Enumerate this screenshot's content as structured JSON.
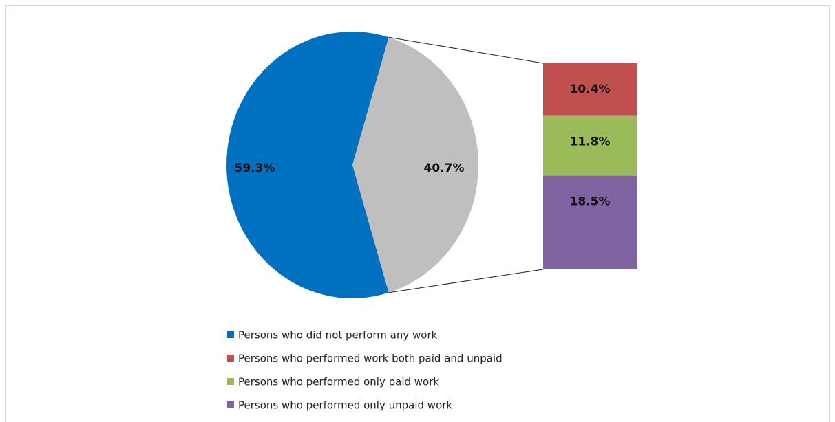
{
  "chart_data": {
    "type": "pie",
    "categories": [
      "Persons who did not perform any work",
      "Persons who performed work both paid and unpaid",
      "Persons who performed only paid work",
      "Persons who performed only unpaid work"
    ],
    "values": [
      59.3,
      10.4,
      11.8,
      18.5
    ],
    "value_labels": [
      "59.3%",
      "10.4%",
      "11.8%",
      "18.5%"
    ],
    "colors": [
      "#0070c0",
      "#c0504d",
      "#9bbb59",
      "#8064a2"
    ],
    "other_value": 40.7,
    "other_label": "40.7%",
    "other_color": "#bfbfbf",
    "legend": "bottom"
  }
}
